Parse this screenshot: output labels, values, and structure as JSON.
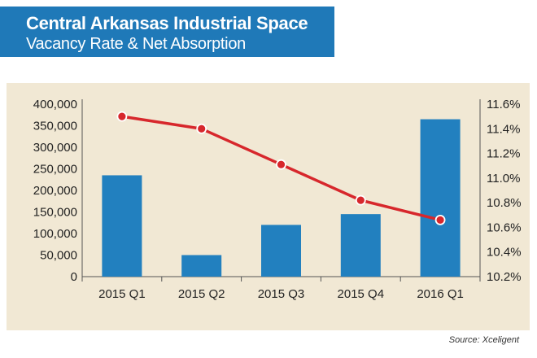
{
  "header": {
    "title": "Central Arkansas Industrial Space",
    "subtitle": "Vacancy Rate & Net Absorption"
  },
  "source": "Source: Xceligent",
  "colors": {
    "header_bg": "#1f79b8",
    "panel_bg": "#f1e8d4",
    "bar": "#2280bf",
    "line": "#d7272c"
  },
  "chart_data": {
    "type": "bar",
    "categories": [
      "2015 Q1",
      "2015 Q2",
      "2015 Q3",
      "2015 Q4",
      "2016 Q1"
    ],
    "series": [
      {
        "type": "bar",
        "axis": "left",
        "values": [
          235000,
          50000,
          120000,
          145000,
          365000
        ]
      },
      {
        "type": "line",
        "axis": "right",
        "values": [
          11.5,
          11.4,
          11.11,
          10.82,
          10.66
        ]
      }
    ],
    "y_left": {
      "ylim": [
        0,
        400000
      ],
      "ticks": [
        0,
        50000,
        100000,
        150000,
        200000,
        250000,
        300000,
        350000,
        400000
      ],
      "tick_labels": [
        "0",
        "50,000",
        "100,000",
        "150,000",
        "200,000",
        "250,000",
        "300,000",
        "350,000",
        "400,000"
      ]
    },
    "y_right": {
      "ylim": [
        10.2,
        11.6
      ],
      "ticks": [
        10.2,
        10.4,
        10.6,
        10.8,
        11.0,
        11.2,
        11.4,
        11.6
      ],
      "tick_labels": [
        "10.2%",
        "10.4%",
        "10.6%",
        "10.8%",
        "11.0%",
        "11.2%",
        "11.4%",
        "11.6%"
      ]
    },
    "grid": false,
    "legend": "none"
  }
}
